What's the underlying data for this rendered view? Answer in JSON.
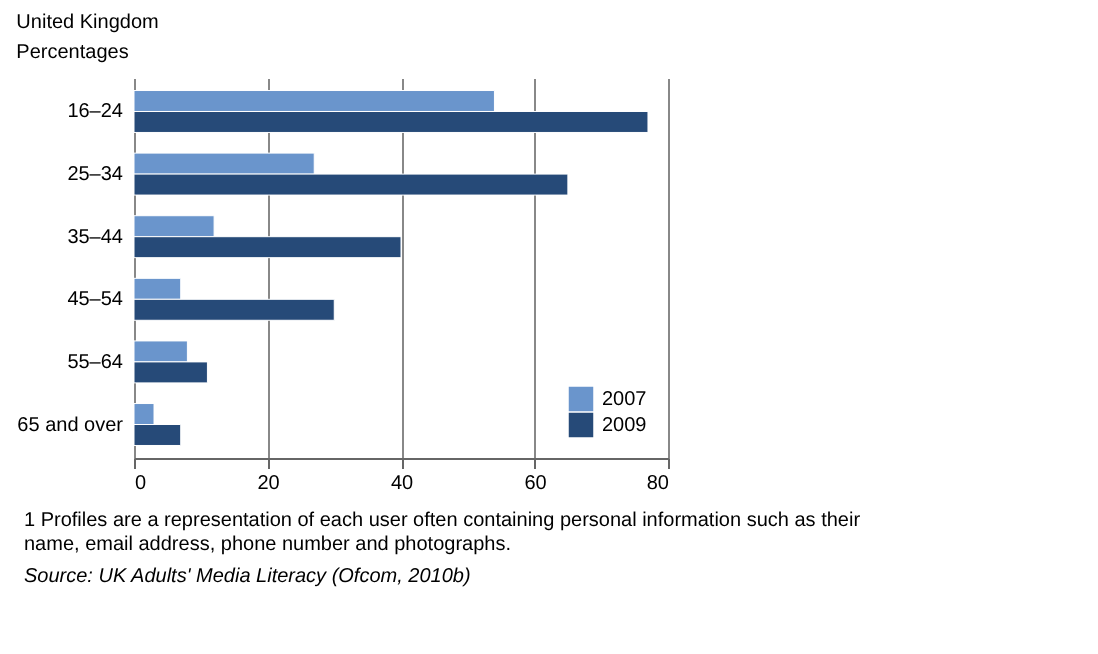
{
  "chart_data": {
    "type": "bar",
    "orientation": "horizontal",
    "title": "United Kingdom",
    "subtitle": "Percentages",
    "categories": [
      "16–24",
      "25–34",
      "35–44",
      "45–54",
      "55–64",
      "65 and over"
    ],
    "series": [
      {
        "name": "2007",
        "color": "#6a95cc",
        "values": [
          54,
          27,
          12,
          7,
          8,
          3
        ]
      },
      {
        "name": "2009",
        "color": "#264a78",
        "values": [
          77,
          65,
          40,
          30,
          11,
          7
        ]
      }
    ],
    "xlim": [
      0,
      80
    ],
    "xticks": [
      0,
      20,
      40,
      60,
      80
    ],
    "grid": "x",
    "legend": "bottom right",
    "annotations": [
      "1 Profiles are a representation of each user often containing personal information such as their name, email address, phone number and photographs.",
      "Source: UK Adults' Media Literacy (Ofcom, 2010b)"
    ]
  }
}
